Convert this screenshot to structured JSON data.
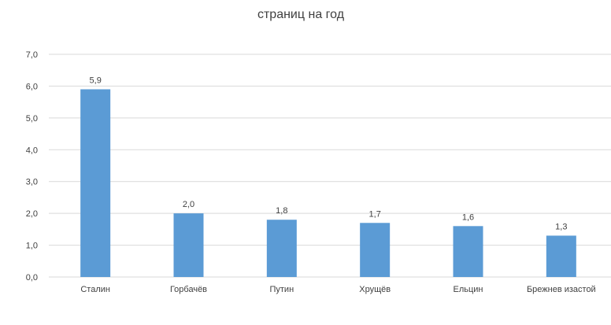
{
  "chart_data": {
    "type": "bar",
    "title": "страниц на год",
    "xlabel": "",
    "ylabel": "",
    "categories": [
      "Сталин",
      "Горбачёв",
      "Путин",
      "Хрущёв",
      "Ельцин",
      "Брежнев изастой"
    ],
    "values": [
      5.9,
      2.0,
      1.8,
      1.7,
      1.6,
      1.3
    ],
    "value_labels": [
      "5,9",
      "2,0",
      "1,8",
      "1,7",
      "1,6",
      "1,3"
    ],
    "ylim": [
      0,
      7
    ],
    "yticks": [
      "0,0",
      "1,0",
      "2,0",
      "3,0",
      "4,0",
      "5,0",
      "6,0",
      "7,0"
    ],
    "grid": true,
    "legend": "none",
    "bar_color": "#5b9bd5",
    "grid_color": "#d9d9d9"
  }
}
